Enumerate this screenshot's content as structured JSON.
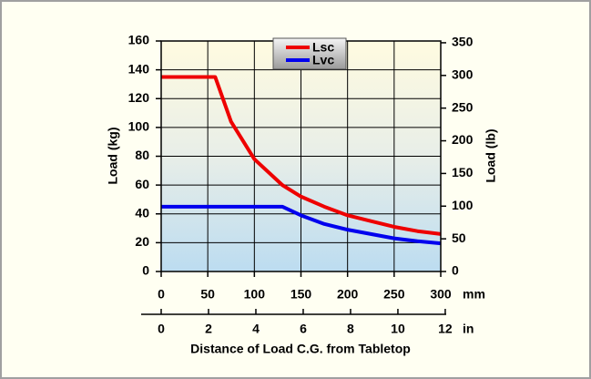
{
  "chart_data": {
    "type": "line",
    "x_label": "Distance of Load C.G. from Tabletop",
    "y_label": "Load (kg)",
    "y2_label": "Load (lb)",
    "x_unit": "mm",
    "x2_unit": "in",
    "x": [
      0,
      25,
      50,
      58,
      75,
      100,
      125,
      130,
      150,
      175,
      200,
      225,
      250,
      275,
      300
    ],
    "series": [
      {
        "name": "Lsc",
        "color": "#ee0000",
        "values": [
          135,
          135,
          135,
          135,
          104,
          78,
          63,
          60,
          52,
          45,
          39,
          35,
          31,
          28,
          26
        ]
      },
      {
        "name": "Lvc",
        "color": "#0000ee",
        "values": [
          45,
          45,
          45,
          45,
          45,
          45,
          45,
          45,
          39,
          33,
          29,
          26,
          23,
          21,
          19.5
        ]
      }
    ],
    "xlim": [
      0,
      300
    ],
    "xticks": [
      0,
      50,
      100,
      150,
      200,
      250,
      300
    ],
    "x2lim": [
      0,
      11.81
    ],
    "x2ticks": [
      0,
      2,
      4,
      6,
      8,
      10,
      12
    ],
    "ylim": [
      0,
      160
    ],
    "yticks": [
      0,
      20,
      40,
      60,
      80,
      100,
      120,
      140,
      160
    ],
    "y2lim": [
      0,
      352.7
    ],
    "y2ticks": [
      0,
      50,
      100,
      150,
      200,
      250,
      300,
      350
    ],
    "grid": true
  }
}
